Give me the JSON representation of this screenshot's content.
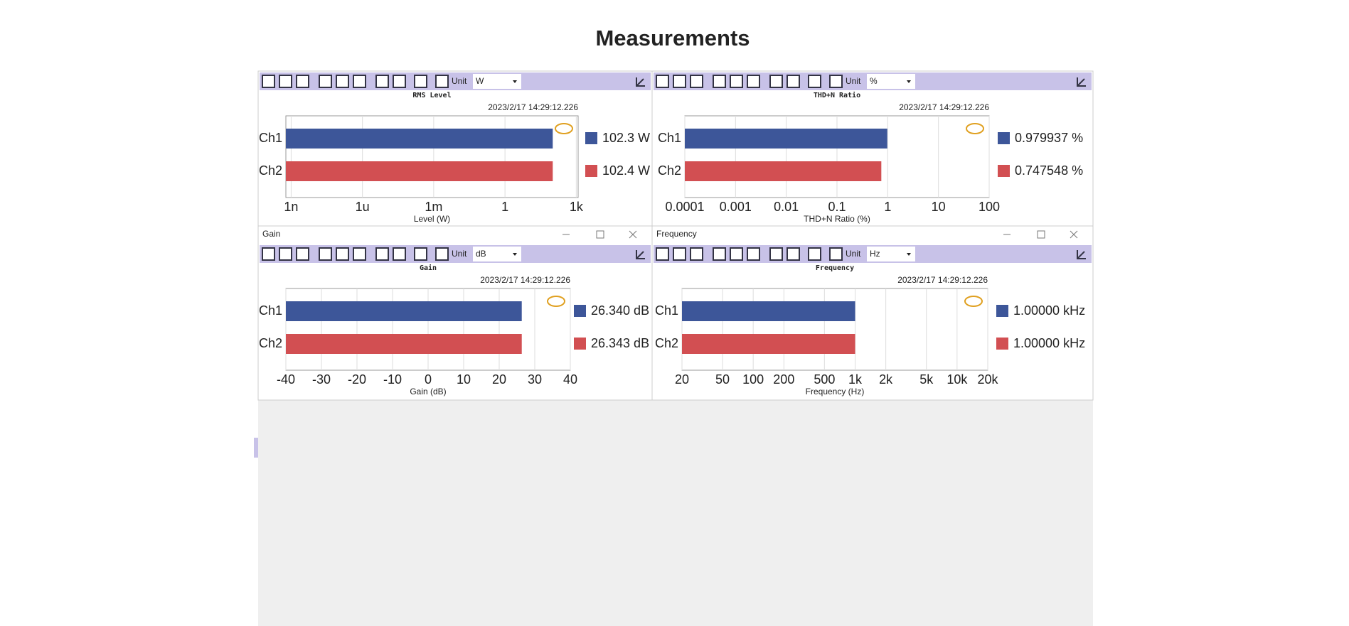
{
  "title": "Measurements",
  "chart_data": [
    {
      "type": "bar",
      "orientation": "horizontal",
      "unit_label": "Unit",
      "unit": "W",
      "title": "RMS Level",
      "timestamp": "2023/2/17 14:29:12.226",
      "categories": [
        "Ch1",
        "Ch2"
      ],
      "values": [
        102.3,
        102.4
      ],
      "value_labels": [
        "102.3 W",
        "102.4 W"
      ],
      "colors": [
        "#3d5699",
        "#d24f52"
      ],
      "xlabel": "Level (W)",
      "xscale": "log",
      "xlim": [
        6e-10,
        1200
      ],
      "xticks": [
        {
          "value": 1e-09,
          "label": "1n"
        },
        {
          "value": 1e-06,
          "label": "1u"
        },
        {
          "value": 0.001,
          "label": "1m"
        },
        1,
        {
          "value": 1000,
          "label": "1k"
        }
      ],
      "grid": true
    },
    {
      "type": "bar",
      "orientation": "horizontal",
      "unit_label": "Unit",
      "unit": "%",
      "title": "THD+N Ratio",
      "timestamp": "2023/2/17 14:29:12.226",
      "categories": [
        "Ch1",
        "Ch2"
      ],
      "values": [
        0.979937,
        0.747548
      ],
      "value_labels": [
        "0.979937 %",
        "0.747548 %"
      ],
      "colors": [
        "#3d5699",
        "#d24f52"
      ],
      "xlabel": "THD+N Ratio (%)",
      "xscale": "log",
      "xlim": [
        0.0001,
        100
      ],
      "xticks": [
        0.0001,
        0.001,
        0.01,
        0.1,
        1,
        10,
        100
      ],
      "grid": true
    },
    {
      "type": "bar",
      "orientation": "horizontal",
      "window_title": "Gain",
      "unit_label": "Unit",
      "unit": "dB",
      "title": "Gain",
      "timestamp": "2023/2/17 14:29:12.226",
      "categories": [
        "Ch1",
        "Ch2"
      ],
      "values": [
        26.34,
        26.343
      ],
      "value_labels": [
        "26.340 dB",
        "26.343 dB"
      ],
      "colors": [
        "#3d5699",
        "#d24f52"
      ],
      "xlabel": "Gain (dB)",
      "xscale": "linear",
      "xlim": [
        -40,
        40
      ],
      "xticks": [
        -40,
        -30,
        -20,
        -10,
        0,
        10,
        20,
        30,
        40
      ],
      "grid": true
    },
    {
      "type": "bar",
      "orientation": "horizontal",
      "window_title": "Frequency",
      "unit_label": "Unit",
      "unit": "Hz",
      "title": "Frequency",
      "timestamp": "2023/2/17 14:29:12.226",
      "categories": [
        "Ch1",
        "Ch2"
      ],
      "values": [
        1000,
        1000
      ],
      "value_labels": [
        "1.00000 kHz",
        "1.00000 kHz"
      ],
      "colors": [
        "#3d5699",
        "#d24f52"
      ],
      "xlabel": "Frequency (Hz)",
      "xscale": "log",
      "xlim": [
        20,
        20000
      ],
      "xticks": [
        20,
        50,
        100,
        200,
        500,
        {
          "value": 1000,
          "label": "1k"
        },
        {
          "value": 2000,
          "label": "2k"
        },
        {
          "value": 5000,
          "label": "5k"
        },
        {
          "value": 10000,
          "label": "10k"
        },
        {
          "value": 20000,
          "label": "20k"
        }
      ],
      "grid": true
    }
  ]
}
